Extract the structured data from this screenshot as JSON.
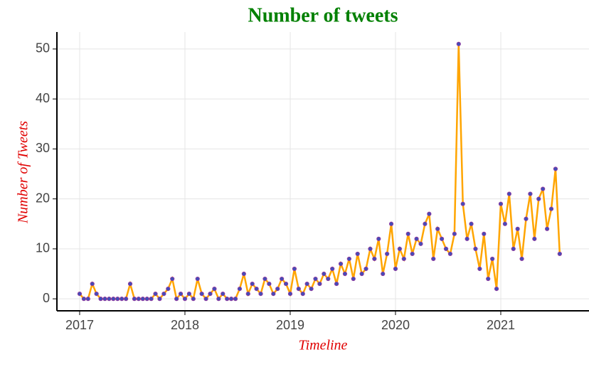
{
  "chart_data": {
    "type": "line",
    "title": "Number of tweets",
    "xlabel": "Timeline",
    "ylabel": "Number of Tweets",
    "x": [
      2017,
      2017.04,
      2017.08,
      2017.12,
      2017.16,
      2017.2,
      2017.24,
      2017.28,
      2017.32,
      2017.36,
      2017.4,
      2017.44,
      2017.48,
      2017.52,
      2017.56,
      2017.6,
      2017.64,
      2017.68,
      2017.72,
      2017.76,
      2017.8,
      2017.84,
      2017.88,
      2017.92,
      2017.96,
      2018,
      2018.04,
      2018.08,
      2018.12,
      2018.16,
      2018.2,
      2018.24,
      2018.28,
      2018.32,
      2018.36,
      2018.4,
      2018.44,
      2018.48,
      2018.52,
      2018.56,
      2018.6,
      2018.64,
      2018.68,
      2018.72,
      2018.76,
      2018.8,
      2018.84,
      2018.88,
      2018.92,
      2018.96,
      2019,
      2019.04,
      2019.08,
      2019.12,
      2019.16,
      2019.2,
      2019.24,
      2019.28,
      2019.32,
      2019.36,
      2019.4,
      2019.44,
      2019.48,
      2019.52,
      2019.56,
      2019.6,
      2019.64,
      2019.68,
      2019.72,
      2019.76,
      2019.8,
      2019.84,
      2019.88,
      2019.92,
      2019.96,
      2020,
      2020.04,
      2020.08,
      2020.12,
      2020.16,
      2020.2,
      2020.24,
      2020.28,
      2020.32,
      2020.36,
      2020.4,
      2020.44,
      2020.48,
      2020.52,
      2020.56,
      2020.6,
      2020.64,
      2020.68,
      2020.72,
      2020.76,
      2020.8,
      2020.84,
      2020.88,
      2020.92,
      2020.96,
      2021,
      2021.04,
      2021.08,
      2021.12,
      2021.16,
      2021.2,
      2021.24,
      2021.28,
      2021.32,
      2021.36,
      2021.4,
      2021.44,
      2021.48,
      2021.52,
      2021.56
    ],
    "values": [
      1,
      0,
      0,
      3,
      1,
      0,
      0,
      0,
      0,
      0,
      0,
      0,
      3,
      0,
      0,
      0,
      0,
      0,
      1,
      0,
      1,
      2,
      4,
      0,
      1,
      0,
      1,
      0,
      4,
      1,
      0,
      1,
      2,
      0,
      1,
      0,
      0,
      0,
      2,
      5,
      1,
      3,
      2,
      1,
      4,
      3,
      1,
      2,
      4,
      3,
      1,
      6,
      2,
      1,
      3,
      2,
      4,
      3,
      5,
      4,
      6,
      3,
      7,
      5,
      8,
      4,
      9,
      5,
      6,
      10,
      8,
      12,
      5,
      9,
      15,
      6,
      10,
      8,
      13,
      9,
      12,
      11,
      15,
      17,
      8,
      14,
      12,
      10,
      9,
      13,
      51,
      19,
      12,
      15,
      10,
      6,
      13,
      4,
      8,
      2,
      19,
      15,
      21,
      10,
      14,
      8,
      16,
      21,
      12,
      20,
      22,
      14,
      18,
      26,
      9
    ],
    "line_color": "#ffa500",
    "marker_color": "#3f4fb8",
    "marker_edge": "#8e3aa0",
    "xlim": [
      2016.784,
      2021.838
    ],
    "xticks": [
      2017,
      2018,
      2019,
      2020,
      2021
    ],
    "ylim": [
      -2.4,
      53.4
    ],
    "yticks": [
      0,
      10,
      20,
      30,
      40,
      50
    ],
    "grid": true
  }
}
